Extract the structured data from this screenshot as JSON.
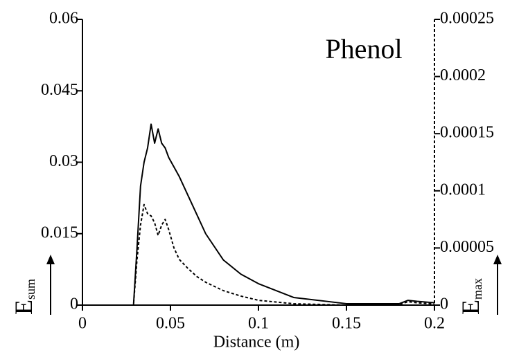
{
  "chart_data": {
    "type": "line",
    "annotation": "Phenol",
    "xlabel": "Distance (m)",
    "ylabel": "E",
    "ylabel_sub": "sum",
    "y2label": "E",
    "y2label_sub": "max",
    "x": [
      0,
      0.029,
      0.031,
      0.033,
      0.035,
      0.037,
      0.039,
      0.041,
      0.043,
      0.045,
      0.047,
      0.049,
      0.052,
      0.055,
      0.06,
      0.065,
      0.07,
      0.08,
      0.09,
      0.1,
      0.12,
      0.15,
      0.18,
      0.185,
      0.19,
      0.2
    ],
    "series": [
      {
        "color": "#000000",
        "dash": false,
        "values": [
          0,
          0,
          0.012,
          0.025,
          0.03,
          0.033,
          0.038,
          0.034,
          0.037,
          0.034,
          0.033,
          0.031,
          0.029,
          0.027,
          0.023,
          0.019,
          0.015,
          0.0095,
          0.0065,
          0.0045,
          0.0016,
          0.0003,
          0.0003,
          0.001,
          0.0008,
          0.0005
        ]
      },
      {
        "color": "#000000",
        "dash": true,
        "axis": "y2",
        "values": [
          0,
          0,
          4e-05,
          7e-05,
          8.8e-05,
          8e-05,
          7.8e-05,
          7.2e-05,
          6.1e-05,
          7e-05,
          7.5e-05,
          6.6e-05,
          5e-05,
          4e-05,
          3.2e-05,
          2.5e-05,
          2e-05,
          1.27e-05,
          7.9e-06,
          4.2e-06,
          1.2e-06,
          0,
          5e-07,
          3e-06,
          2e-06,
          1e-06
        ]
      }
    ],
    "xlim": [
      0,
      0.2
    ],
    "xticks": [
      0,
      0.05,
      0.1,
      0.15,
      0.2
    ],
    "ylim": [
      0,
      0.06
    ],
    "yticks": [
      0,
      0.015,
      0.03,
      0.045,
      0.06
    ],
    "y2lim": [
      0,
      0.00025
    ],
    "y2ticks": [
      0,
      5e-05,
      0.0001,
      0.00015,
      0.0002,
      0.00025
    ]
  }
}
